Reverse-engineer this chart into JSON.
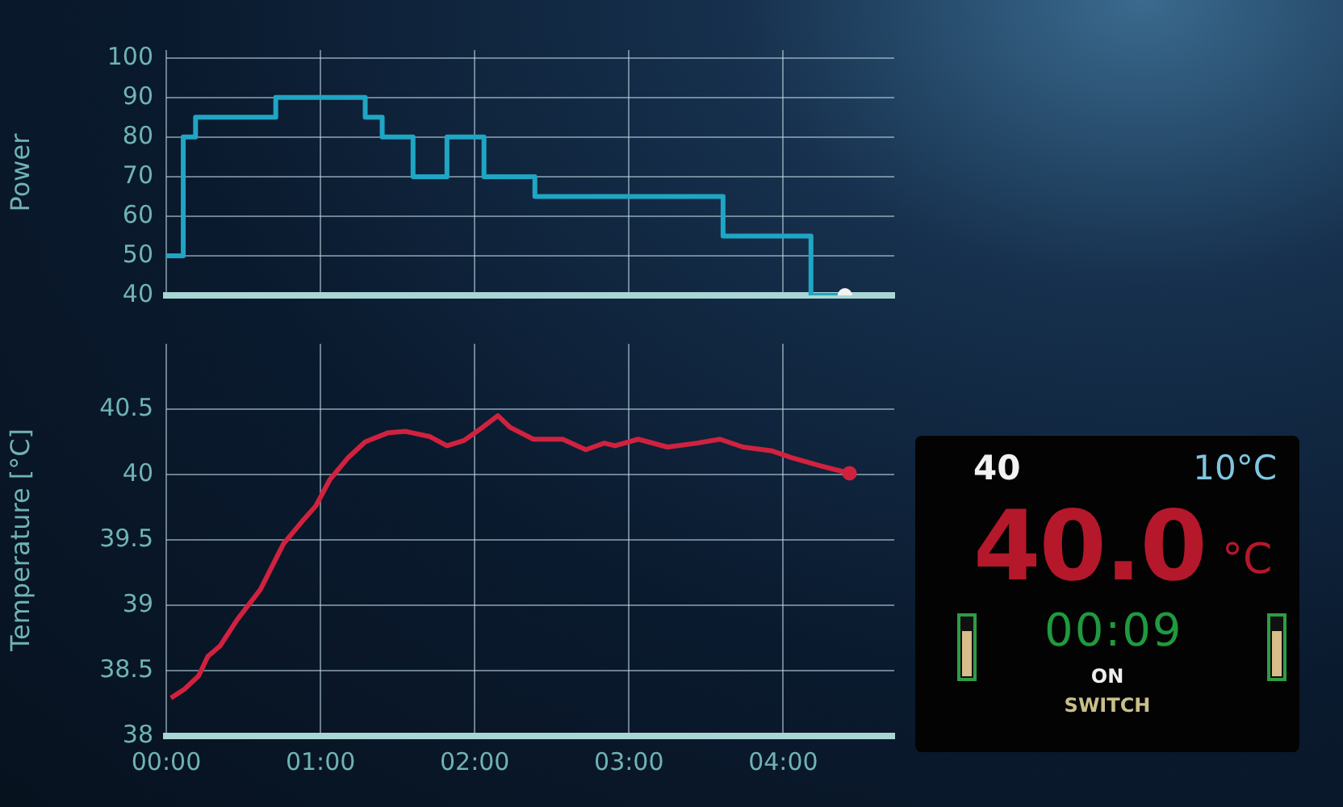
{
  "chart_data": [
    {
      "type": "step",
      "ylabel": "Power",
      "x": [
        0,
        0.11,
        0.19,
        0.71,
        1.29,
        1.4,
        1.6,
        1.82,
        2.06,
        2.39,
        3.61,
        4.18,
        4.4
      ],
      "series": [
        {
          "color": "#1fa6c4",
          "values": [
            50,
            80,
            85,
            90,
            85,
            80,
            70,
            80,
            70,
            65,
            55,
            40,
            40
          ]
        }
      ],
      "xlim": [
        0,
        4.72
      ],
      "xticks": [
        0,
        1,
        2,
        3,
        4
      ],
      "ylim": [
        40,
        102
      ],
      "yticks": [
        40,
        50,
        60,
        70,
        80,
        90,
        100
      ],
      "tick_labels": "y",
      "grid": true,
      "legend": false
    },
    {
      "type": "line",
      "ylabel": "Temperature [°C]",
      "x": [
        0.03,
        0.12,
        0.21,
        0.27,
        0.35,
        0.46,
        0.61,
        0.76,
        0.88,
        0.97,
        1.06,
        1.18,
        1.29,
        1.44,
        1.55,
        1.71,
        1.82,
        1.93,
        2.05,
        2.15,
        2.23,
        2.38,
        2.57,
        2.72,
        2.84,
        2.91,
        3.06,
        3.25,
        3.44,
        3.59,
        3.74,
        3.93,
        4.05,
        4.23,
        4.43
      ],
      "series": [
        {
          "color": "#d0223f",
          "values": [
            38.29,
            38.36,
            38.46,
            38.61,
            38.69,
            38.89,
            39.12,
            39.47,
            39.64,
            39.76,
            39.96,
            40.13,
            40.25,
            40.32,
            40.33,
            40.29,
            40.22,
            40.26,
            40.36,
            40.45,
            40.36,
            40.27,
            40.27,
            40.19,
            40.24,
            40.22,
            40.27,
            40.21,
            40.24,
            40.27,
            40.21,
            40.18,
            40.13,
            40.07,
            40.01
          ]
        }
      ],
      "xlim": [
        0,
        4.72
      ],
      "xticks": [
        {
          "value": 0,
          "label": "00:00"
        },
        {
          "value": 1,
          "label": "01:00"
        },
        {
          "value": 2,
          "label": "02:00"
        },
        {
          "value": 3,
          "label": "03:00"
        },
        {
          "value": 4,
          "label": "04:00"
        }
      ],
      "ylim": [
        38,
        41
      ],
      "yticks": [
        38,
        38.5,
        39,
        39.5,
        40,
        40.5
      ],
      "grid": true,
      "legend": false
    },
    {
      "type": "other",
      "annotations": [
        "40",
        "10°C",
        "40.0",
        "°C",
        "00:09",
        "ON",
        "SWITCH"
      ]
    }
  ]
}
